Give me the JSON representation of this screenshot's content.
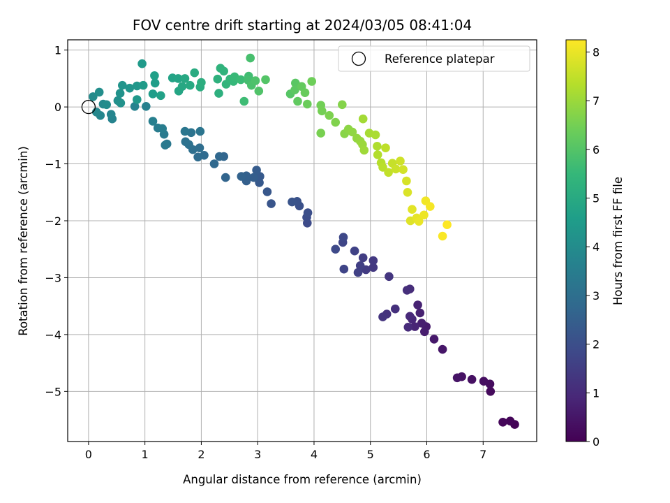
{
  "chart_data": {
    "type": "scatter",
    "title": "FOV centre drift starting at 2024/03/05 08:41:04",
    "xlabel": "Angular distance from reference (arcmin)",
    "ylabel": "Rotation from reference (arcmin)",
    "xlim": [
      -0.37,
      7.95
    ],
    "ylim": [
      -5.88,
      1.18
    ],
    "xticks": [
      0,
      1,
      2,
      3,
      4,
      5,
      6,
      7
    ],
    "yticks": [
      1,
      0,
      -1,
      -2,
      -3,
      -4,
      -5
    ],
    "grid": true,
    "legend": {
      "placement": "top-right",
      "entries": [
        "Reference platepar"
      ]
    },
    "reference_point": {
      "x": 0,
      "y": 0,
      "marker": "open-circle"
    },
    "colorbar": {
      "label": "Hours from first FF file",
      "colormap": "viridis",
      "range": [
        0,
        8.25
      ],
      "ticks": [
        0,
        1,
        2,
        3,
        4,
        5,
        6,
        7,
        8
      ]
    },
    "color_stops": [
      "#440154",
      "#482878",
      "#3e4989",
      "#31688e",
      "#26828e",
      "#1f9e89",
      "#35b779",
      "#6ece58",
      "#b5de2b",
      "#fde725"
    ],
    "series": [
      {
        "color_by": "hours",
        "points": [
          [
            7.56,
            -5.58,
            0.05
          ],
          [
            7.48,
            -5.52,
            0.1
          ],
          [
            7.35,
            -5.54,
            0.15
          ],
          [
            7.13,
            -5.0,
            0.2
          ],
          [
            7.12,
            -4.87,
            0.25
          ],
          [
            7.01,
            -4.82,
            0.3
          ],
          [
            6.8,
            -4.79,
            0.35
          ],
          [
            6.62,
            -4.74,
            0.4
          ],
          [
            6.54,
            -4.76,
            0.45
          ],
          [
            6.28,
            -4.26,
            0.5
          ],
          [
            6.13,
            -4.08,
            0.55
          ],
          [
            5.99,
            -3.86,
            0.6
          ],
          [
            5.96,
            -3.95,
            0.65
          ],
          [
            5.91,
            -3.8,
            0.7
          ],
          [
            5.88,
            -3.62,
            0.75
          ],
          [
            5.84,
            -3.48,
            0.8
          ],
          [
            5.79,
            -3.86,
            0.85
          ],
          [
            5.74,
            -3.73,
            0.9
          ],
          [
            5.7,
            -3.68,
            0.95
          ],
          [
            5.67,
            -3.87,
            1.0
          ],
          [
            5.7,
            -3.2,
            1.05
          ],
          [
            5.65,
            -3.22,
            1.1
          ],
          [
            5.44,
            -3.55,
            1.15
          ],
          [
            5.29,
            -3.64,
            1.2
          ],
          [
            5.22,
            -3.69,
            1.25
          ],
          [
            5.33,
            -2.98,
            1.3
          ],
          [
            5.05,
            -2.82,
            1.35
          ],
          [
            5.05,
            -2.7,
            1.4
          ],
          [
            4.92,
            -2.86,
            1.45
          ],
          [
            4.87,
            -2.65,
            1.5
          ],
          [
            4.82,
            -2.79,
            1.55
          ],
          [
            4.78,
            -2.91,
            1.6
          ],
          [
            4.72,
            -2.53,
            1.65
          ],
          [
            4.53,
            -2.85,
            1.7
          ],
          [
            4.51,
            -2.38,
            1.75
          ],
          [
            4.52,
            -2.29,
            1.8
          ],
          [
            4.38,
            -2.5,
            1.85
          ],
          [
            3.88,
            -2.04,
            1.9
          ],
          [
            3.87,
            -1.94,
            1.95
          ],
          [
            3.89,
            -1.86,
            2.0
          ],
          [
            3.74,
            -1.74,
            2.05
          ],
          [
            3.7,
            -1.66,
            2.1
          ],
          [
            3.61,
            -1.67,
            2.15
          ],
          [
            3.24,
            -1.7,
            2.2
          ],
          [
            3.17,
            -1.49,
            2.25
          ],
          [
            3.03,
            -1.33,
            2.3
          ],
          [
            3.04,
            -1.22,
            2.35
          ],
          [
            2.98,
            -1.11,
            2.4
          ],
          [
            2.93,
            -1.24,
            2.45
          ],
          [
            2.8,
            -1.3,
            2.5
          ],
          [
            2.8,
            -1.21,
            2.55
          ],
          [
            2.71,
            -1.22,
            2.6
          ],
          [
            2.43,
            -1.24,
            2.65
          ],
          [
            2.4,
            -0.87,
            2.7
          ],
          [
            2.32,
            -0.87,
            2.75
          ],
          [
            2.23,
            -1.0,
            2.8
          ],
          [
            2.05,
            -0.85,
            2.85
          ],
          [
            1.94,
            -0.88,
            2.9
          ],
          [
            1.97,
            -0.72,
            2.95
          ],
          [
            1.85,
            -0.75,
            3.0
          ],
          [
            1.78,
            -0.66,
            3.05
          ],
          [
            1.72,
            -0.61,
            3.1
          ],
          [
            1.82,
            -0.45,
            3.15
          ],
          [
            1.98,
            -0.43,
            3.2
          ],
          [
            1.71,
            -0.43,
            3.25
          ],
          [
            1.39,
            -0.65,
            3.3
          ],
          [
            1.36,
            -0.67,
            3.35
          ],
          [
            1.34,
            -0.48,
            3.4
          ],
          [
            1.23,
            -0.37,
            3.45
          ],
          [
            1.31,
            -0.38,
            3.5
          ],
          [
            1.14,
            -0.25,
            3.55
          ],
          [
            1.02,
            0.01,
            3.6
          ],
          [
            0.82,
            0.01,
            3.65
          ],
          [
            0.42,
            -0.21,
            3.7
          ],
          [
            0.4,
            -0.13,
            3.75
          ],
          [
            0.21,
            -0.15,
            3.8
          ],
          [
            0.14,
            -0.09,
            3.85
          ],
          [
            0.26,
            0.05,
            3.9
          ],
          [
            0.08,
            0.18,
            3.95
          ],
          [
            0.32,
            0.04,
            4.0
          ],
          [
            0.19,
            0.26,
            4.05
          ],
          [
            0.52,
            0.11,
            4.1
          ],
          [
            0.57,
            0.07,
            4.15
          ],
          [
            0.56,
            0.24,
            4.2
          ],
          [
            0.6,
            0.38,
            4.25
          ],
          [
            0.73,
            0.33,
            4.3
          ],
          [
            0.86,
            0.37,
            4.35
          ],
          [
            0.86,
            0.13,
            4.4
          ],
          [
            0.95,
            0.76,
            4.45
          ],
          [
            0.97,
            0.38,
            4.5
          ],
          [
            1.14,
            0.23,
            4.55
          ],
          [
            1.18,
            0.42,
            4.6
          ],
          [
            1.17,
            0.55,
            4.65
          ],
          [
            1.28,
            0.2,
            4.7
          ],
          [
            1.49,
            0.51,
            4.75
          ],
          [
            1.59,
            0.5,
            4.8
          ],
          [
            1.6,
            0.28,
            4.85
          ],
          [
            1.66,
            0.36,
            4.9
          ],
          [
            1.71,
            0.5,
            4.95
          ],
          [
            1.8,
            0.38,
            5.0
          ],
          [
            1.88,
            0.6,
            5.05
          ],
          [
            1.98,
            0.35,
            5.1
          ],
          [
            2.0,
            0.43,
            5.15
          ],
          [
            2.31,
            0.24,
            5.2
          ],
          [
            2.29,
            0.49,
            5.25
          ],
          [
            2.34,
            0.68,
            5.3
          ],
          [
            2.4,
            0.63,
            5.35
          ],
          [
            2.44,
            0.4,
            5.4
          ],
          [
            2.51,
            0.49,
            5.45
          ],
          [
            2.57,
            0.45,
            5.5
          ],
          [
            2.59,
            0.53,
            5.55
          ],
          [
            2.7,
            0.48,
            5.6
          ],
          [
            2.76,
            0.1,
            5.65
          ],
          [
            2.84,
            0.54,
            5.7
          ],
          [
            2.83,
            0.47,
            5.75
          ],
          [
            2.87,
            0.86,
            5.8
          ],
          [
            2.89,
            0.38,
            5.85
          ],
          [
            2.96,
            0.46,
            5.9
          ],
          [
            3.02,
            0.28,
            5.95
          ],
          [
            3.14,
            0.48,
            6.0
          ],
          [
            3.58,
            0.23,
            6.05
          ],
          [
            3.67,
            0.42,
            6.1
          ],
          [
            3.66,
            0.3,
            6.15
          ],
          [
            3.71,
            0.1,
            6.2
          ],
          [
            3.78,
            0.36,
            6.25
          ],
          [
            3.84,
            0.25,
            6.3
          ],
          [
            3.88,
            0.05,
            6.35
          ],
          [
            3.96,
            0.45,
            6.4
          ],
          [
            4.12,
            0.03,
            6.45
          ],
          [
            4.14,
            -0.07,
            6.5
          ],
          [
            4.12,
            -0.46,
            6.55
          ],
          [
            4.27,
            -0.15,
            6.6
          ],
          [
            4.38,
            -0.27,
            6.65
          ],
          [
            4.5,
            0.04,
            6.7
          ],
          [
            4.54,
            -0.47,
            6.75
          ],
          [
            4.61,
            -0.39,
            6.8
          ],
          [
            4.68,
            -0.44,
            6.85
          ],
          [
            4.76,
            -0.55,
            6.9
          ],
          [
            4.82,
            -0.6,
            6.95
          ],
          [
            4.86,
            -0.66,
            7.0
          ],
          [
            4.89,
            -0.76,
            7.05
          ],
          [
            4.87,
            -0.21,
            7.1
          ],
          [
            4.98,
            -0.46,
            7.15
          ],
          [
            5.09,
            -0.49,
            7.2
          ],
          [
            5.12,
            -0.69,
            7.25
          ],
          [
            5.13,
            -0.84,
            7.3
          ],
          [
            5.19,
            -0.98,
            7.35
          ],
          [
            5.22,
            -1.06,
            7.4
          ],
          [
            5.27,
            -0.72,
            7.45
          ],
          [
            5.32,
            -1.15,
            7.5
          ],
          [
            5.39,
            -0.99,
            7.55
          ],
          [
            5.45,
            -1.09,
            7.6
          ],
          [
            5.53,
            -0.95,
            7.65
          ],
          [
            5.58,
            -1.1,
            7.7
          ],
          [
            5.64,
            -1.3,
            7.75
          ],
          [
            5.66,
            -1.5,
            7.8
          ],
          [
            5.71,
            -2.0,
            7.85
          ],
          [
            5.74,
            -1.8,
            7.9
          ],
          [
            5.82,
            -1.95,
            7.95
          ],
          [
            5.86,
            -2.01,
            8.0
          ],
          [
            5.95,
            -1.9,
            8.05
          ],
          [
            5.98,
            -1.65,
            8.1
          ],
          [
            6.06,
            -1.75,
            8.15
          ],
          [
            6.28,
            -2.27,
            8.2
          ],
          [
            6.36,
            -2.07,
            8.25
          ]
        ]
      }
    ]
  }
}
